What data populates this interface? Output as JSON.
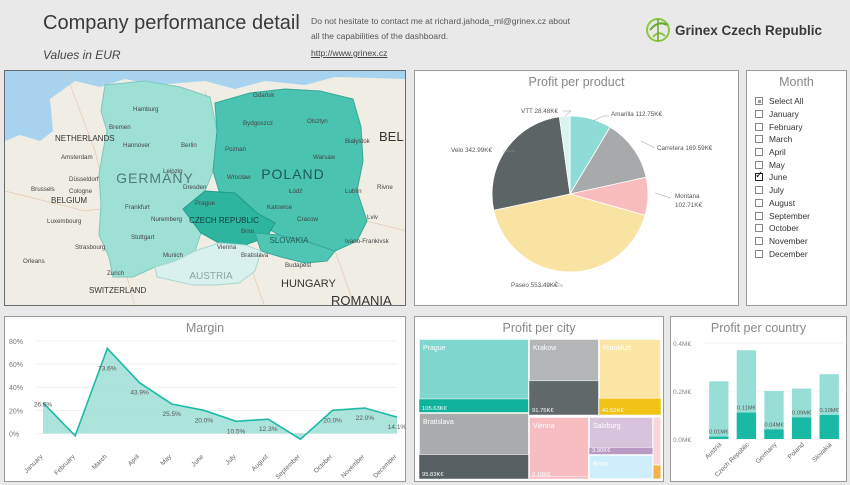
{
  "header": {
    "title": "Company performance detail",
    "subtitle": "Values in EUR",
    "contact_text": "Do not hesitate to contact me at richard.jahoda_ml@grinex.cz about all the capabilities of the dashboard.",
    "link": "http://www.grinex.cz",
    "logo_text": "Grinex Czech Republic"
  },
  "map": {
    "countries": [
      "GERMANY",
      "POLAND",
      "CZECH REPUBLIC",
      "SLOVAKIA",
      "AUSTRIA",
      "HUNGARY",
      "NETHERLANDS",
      "BELGIUM",
      "SWITZERLAND",
      "ROMANIA",
      "BEL"
    ],
    "cities": [
      "Hamburg",
      "Berlin",
      "Gdańsk",
      "Olsztyn",
      "Bremen",
      "Białystok",
      "Amsterdam",
      "Hannover",
      "Poznań",
      "Warsaw",
      "Bydgoszcz",
      "Düsseldorf",
      "Leipzig",
      "Wrocław",
      "Łódź",
      "Lublin",
      "Cologne",
      "Prague",
      "Dresden",
      "Frankfurt",
      "Katowice",
      "Cracow",
      "Brussels",
      "Luxembourg",
      "Nuremberg",
      "Brno",
      "Stuttgart",
      "Strasbourg",
      "Munich",
      "Vienna",
      "Bratislava",
      "Zurich",
      "Budapest",
      "Orleans",
      "Lviv",
      "Rivne",
      "Ivano-Frankivsk"
    ],
    "colors": {
      "germany": "#9fe0d5",
      "poland": "#4ac3b1",
      "czech": "#2db5a0",
      "slovakia": "#4fc6b4",
      "austria": "#d9f1ee"
    }
  },
  "pie": {
    "title": "Profit per product",
    "slices": [
      {
        "label": "Amarilla 112.75K€",
        "value": 112.75,
        "color": "#8fdcd6"
      },
      {
        "label": "Carretera 169.59K€",
        "value": 169.59,
        "color": "#a7a9ab"
      },
      {
        "label_line1": "Montana",
        "label_line2": "102.71K€",
        "value": 102.71,
        "color": "#f8bcbf"
      },
      {
        "label": "Paseo 553.49K€",
        "value": 553.49,
        "color": "#f9e3a2"
      },
      {
        "label": "Velo 342.99K€",
        "value": 342.99,
        "color": "#5c6466"
      },
      {
        "label": "VTT 28.48K€",
        "value": 28.48,
        "color": "#d9f3f1"
      }
    ]
  },
  "month": {
    "title": "Month",
    "items": [
      {
        "label": "Select All",
        "state": "partial"
      },
      {
        "label": "January",
        "state": "off"
      },
      {
        "label": "February",
        "state": "off"
      },
      {
        "label": "March",
        "state": "off"
      },
      {
        "label": "April",
        "state": "off"
      },
      {
        "label": "May",
        "state": "off"
      },
      {
        "label": "June",
        "state": "checked"
      },
      {
        "label": "July",
        "state": "off"
      },
      {
        "label": "August",
        "state": "off"
      },
      {
        "label": "September",
        "state": "off"
      },
      {
        "label": "October",
        "state": "off"
      },
      {
        "label": "November",
        "state": "off"
      },
      {
        "label": "December",
        "state": "off"
      }
    ]
  },
  "chart_data": [
    {
      "type": "area",
      "title": "Margin",
      "categories": [
        "January",
        "February",
        "March",
        "April",
        "May",
        "June",
        "July",
        "August",
        "September",
        "October",
        "November",
        "December"
      ],
      "values": [
        26.6,
        -2,
        73.6,
        43.9,
        25.5,
        20.0,
        10.5,
        12.3,
        -5,
        20.0,
        22.0,
        14.1
      ],
      "data_labels": [
        "26.6%",
        "",
        "73.6%",
        "43.9%",
        "25.5%",
        "20.0%",
        "10.5%",
        "12.3%",
        "",
        "20.0%",
        "22.0%",
        "14.1%"
      ],
      "yticks": [
        "80%",
        "60%",
        "40%",
        "20%",
        "0%"
      ],
      "ylim": [
        -10,
        80
      ],
      "color": "#1fbaa6"
    },
    {
      "type": "treemap",
      "title": "Profit per city",
      "tiles": [
        {
          "name": "Prague",
          "value": "105.63K€",
          "light": "#7fd6ce",
          "dark": "#0fb39c",
          "fill": 0.19
        },
        {
          "name": "Bratislava",
          "value": "95.83K€",
          "light": "#a9abad",
          "dark": "#565f61",
          "fill": 0.37
        },
        {
          "name": "Krakow",
          "value": "91.75K€",
          "light": "#b3b5b7",
          "dark": "#60686a",
          "fill": 0.45
        },
        {
          "name": "Frankfurt",
          "value": "42.52K€",
          "light": "#fbe6a6",
          "dark": "#f2c317",
          "fill": 0.22
        },
        {
          "name": "Vienna",
          "value": "2.10K€",
          "light": "#f8bdc0",
          "dark": "#f8bdc0",
          "fill": 0.04
        },
        {
          "name": "Salzburg",
          "value": "3.90K€",
          "light": "#d7c3dc",
          "dark": "#b99ac4",
          "fill": 0.2
        },
        {
          "name": "Brno",
          "value": "",
          "light": "#cdeefa",
          "dark": "#cdeefa",
          "fill": 0.0
        }
      ]
    },
    {
      "type": "bar",
      "title": "Profit per country",
      "categories": [
        "Austria",
        "Czech Republic",
        "Germany",
        "Poland",
        "Slovakia"
      ],
      "series": [
        {
          "values": [
            0.24,
            0.37,
            0.2,
            0.21,
            0.27
          ],
          "color": "#97dfd6"
        },
        {
          "values": [
            0.01,
            0.11,
            0.04,
            0.09,
            0.1
          ],
          "color": "#1ab9a5"
        }
      ],
      "data_labels": [
        "0.01M€",
        "0.11M€",
        "0.04M€",
        "0.09M€",
        "0.10M€"
      ],
      "yticks": [
        "0.4M€",
        "0.2M€",
        "0.0M€"
      ],
      "ylim": [
        0,
        0.4
      ]
    }
  ]
}
